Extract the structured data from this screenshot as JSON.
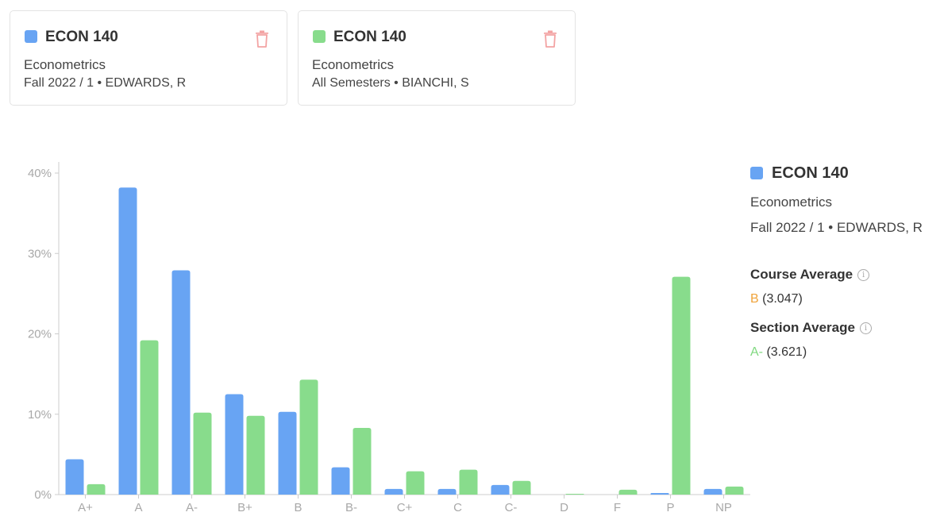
{
  "colors": {
    "blue": "#68a4f3",
    "green": "#88dc8c",
    "trash": "#f3a3a3",
    "avg_b": "#f0a33a",
    "avg_a": "#7fd87f"
  },
  "cards": [
    {
      "code": "ECON 140",
      "name": "Econometrics",
      "meta": "Fall 2022 / 1 • EDWARDS, R",
      "icon": "trash-icon"
    },
    {
      "code": "ECON 140",
      "name": "Econometrics",
      "meta": "All Semesters • BIANCHI, S",
      "icon": "trash-icon"
    }
  ],
  "legend": {
    "code": "ECON 140",
    "name": "Econometrics",
    "meta": "Fall 2022 / 1 • EDWARDS, R",
    "course_average_label": "Course Average",
    "course_average_grade": "B",
    "course_average_value": "(3.047)",
    "section_average_label": "Section Average",
    "section_average_grade": "A-",
    "section_average_value": "(3.621)",
    "info_icon": "info-icon"
  },
  "chart_data": {
    "type": "bar",
    "categories": [
      "A+",
      "A",
      "A-",
      "B+",
      "B",
      "B-",
      "C+",
      "C",
      "C-",
      "D",
      "F",
      "P",
      "NP"
    ],
    "series": [
      {
        "color": "#68a4f3",
        "values": [
          4.4,
          38.2,
          27.9,
          12.5,
          10.3,
          3.4,
          0.7,
          0.7,
          1.2,
          0.0,
          0.0,
          0.2,
          0.7
        ]
      },
      {
        "color": "#88dc8c",
        "values": [
          1.3,
          19.2,
          10.2,
          9.8,
          14.3,
          8.3,
          2.9,
          3.1,
          1.7,
          0.1,
          0.6,
          27.1,
          1.0
        ]
      }
    ],
    "yticks": [
      "0%",
      "10%",
      "20%",
      "30%",
      "40%"
    ],
    "ytick_values": [
      0,
      10,
      20,
      30,
      40
    ],
    "ylim": [
      0,
      40
    ],
    "grid": false
  }
}
